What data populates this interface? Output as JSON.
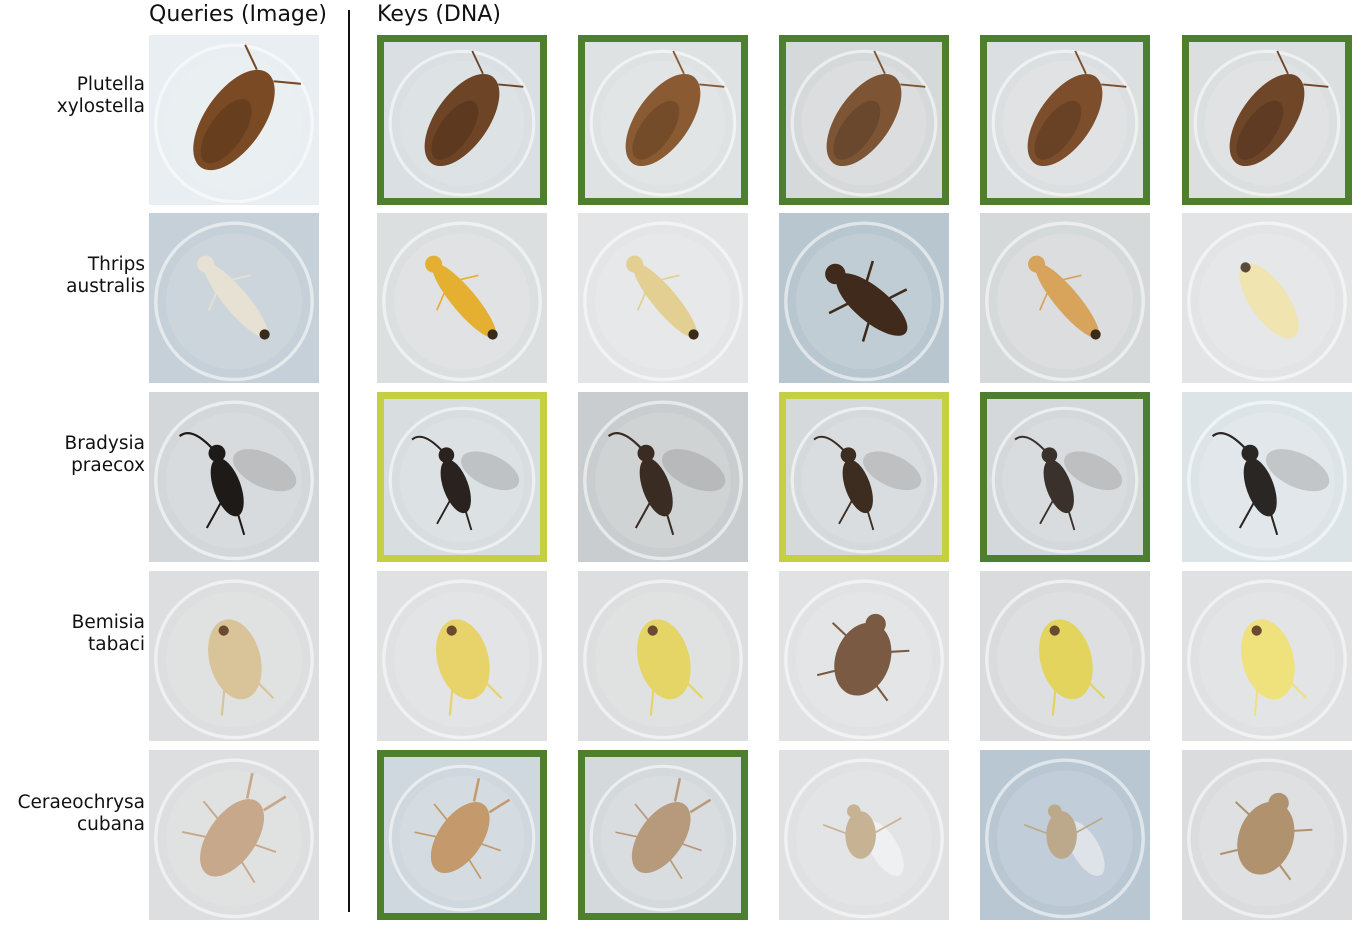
{
  "header": {
    "queries_title": "Queries (Image)",
    "keys_title": "Keys (DNA)"
  },
  "colors": {
    "match_species": "#4e7f2e",
    "match_partial": "#c4cf42"
  },
  "rows": [
    {
      "species": [
        "Plutella",
        "xylostella"
      ],
      "query": {
        "subject": "brown-moth-icon",
        "bg": "#e8eef1",
        "fg": "#7a4a25"
      },
      "keys": [
        {
          "subject": "brown-moth-icon",
          "bg": "#d9dfe2",
          "fg": "#6e4426",
          "highlight": "species"
        },
        {
          "subject": "brown-moth-icon",
          "bg": "#dfe2e3",
          "fg": "#8a5a32",
          "highlight": "species"
        },
        {
          "subject": "brown-moth-icon",
          "bg": "#d6d9da",
          "fg": "#7d5535",
          "highlight": "species"
        },
        {
          "subject": "brown-moth-icon",
          "bg": "#dcdfe1",
          "fg": "#7c4e2c",
          "highlight": "species"
        },
        {
          "subject": "brown-moth-icon",
          "bg": "#dcdfe0",
          "fg": "#6f4628",
          "highlight": "species"
        }
      ]
    },
    {
      "species": [
        "Thrips",
        "australis"
      ],
      "query": {
        "subject": "pale-thrips-icon",
        "bg": "#c5d0d8",
        "fg": "#e6e1d2"
      },
      "keys": [
        {
          "subject": "yellow-thrips-icon",
          "bg": "#dcdfe0",
          "fg": "#e5b032",
          "highlight": "none"
        },
        {
          "subject": "pale-thrips-icon",
          "bg": "#e3e5e6",
          "fg": "#e3cf92",
          "highlight": "none"
        },
        {
          "subject": "dark-beetle-icon",
          "bg": "#b8c6cf",
          "fg": "#3f2a1c",
          "highlight": "none"
        },
        {
          "subject": "orange-thrips-icon",
          "bg": "#d6d9da",
          "fg": "#d8a35a",
          "highlight": "none"
        },
        {
          "subject": "pale-larva-icon",
          "bg": "#e2e4e5",
          "fg": "#f0e4b0",
          "highlight": "none"
        }
      ]
    },
    {
      "species": [
        "Bradysia",
        "praecox"
      ],
      "query": {
        "subject": "dark-gnat-icon",
        "bg": "#d3d7d9",
        "fg": "#1e1a18"
      },
      "keys": [
        {
          "subject": "dark-gnat-icon",
          "bg": "#d8dde0",
          "fg": "#2a221e",
          "highlight": "genus"
        },
        {
          "subject": "dark-gnat-icon",
          "bg": "#c9cdcf",
          "fg": "#3a2c22",
          "highlight": "none"
        },
        {
          "subject": "dark-gnat-icon",
          "bg": "#d5d9dc",
          "fg": "#3d2d20",
          "highlight": "genus"
        },
        {
          "subject": "dark-gnat-icon",
          "bg": "#d4d8da",
          "fg": "#3a302c",
          "highlight": "species"
        },
        {
          "subject": "dark-gnat-icon",
          "bg": "#dde4e8",
          "fg": "#2a2624",
          "highlight": "none"
        }
      ]
    },
    {
      "species": [
        "Bemisia",
        "tabaci"
      ],
      "query": {
        "subject": "pale-whitefly-icon",
        "bg": "#dcdedf",
        "fg": "#d9c49a"
      },
      "keys": [
        {
          "subject": "yellow-whitefly-icon",
          "bg": "#dfe1e2",
          "fg": "#e7d36a",
          "highlight": "none"
        },
        {
          "subject": "yellow-whitefly-icon",
          "bg": "#dcdedf",
          "fg": "#e5d466",
          "highlight": "none"
        },
        {
          "subject": "brown-bug-icon",
          "bg": "#e0e2e3",
          "fg": "#7a5a42",
          "highlight": "none"
        },
        {
          "subject": "yellow-whitefly-icon",
          "bg": "#d9dbdc",
          "fg": "#e2d45c",
          "highlight": "none"
        },
        {
          "subject": "yellow-whitefly-icon",
          "bg": "#dfe1e2",
          "fg": "#efe17c",
          "highlight": "none"
        }
      ]
    },
    {
      "species": [
        "Ceraeochrysa",
        "cubana"
      ],
      "query": {
        "subject": "lacewing-larva-icon",
        "bg": "#dcdedf",
        "fg": "#c7a88a"
      },
      "keys": [
        {
          "subject": "lacewing-larva-icon",
          "bg": "#cfd8de",
          "fg": "#c49a6c",
          "highlight": "species"
        },
        {
          "subject": "lacewing-larva-icon",
          "bg": "#d4d9dc",
          "fg": "#b79a7c",
          "highlight": "species"
        },
        {
          "subject": "pale-fly-icon",
          "bg": "#dfe1e2",
          "fg": "#c7b394",
          "highlight": "none"
        },
        {
          "subject": "pale-fly-icon",
          "bg": "#b9c7d3",
          "fg": "#bca88a",
          "highlight": "none"
        },
        {
          "subject": "brown-bug-icon",
          "bg": "#dadcdd",
          "fg": "#b0926e",
          "highlight": "none"
        }
      ]
    }
  ]
}
